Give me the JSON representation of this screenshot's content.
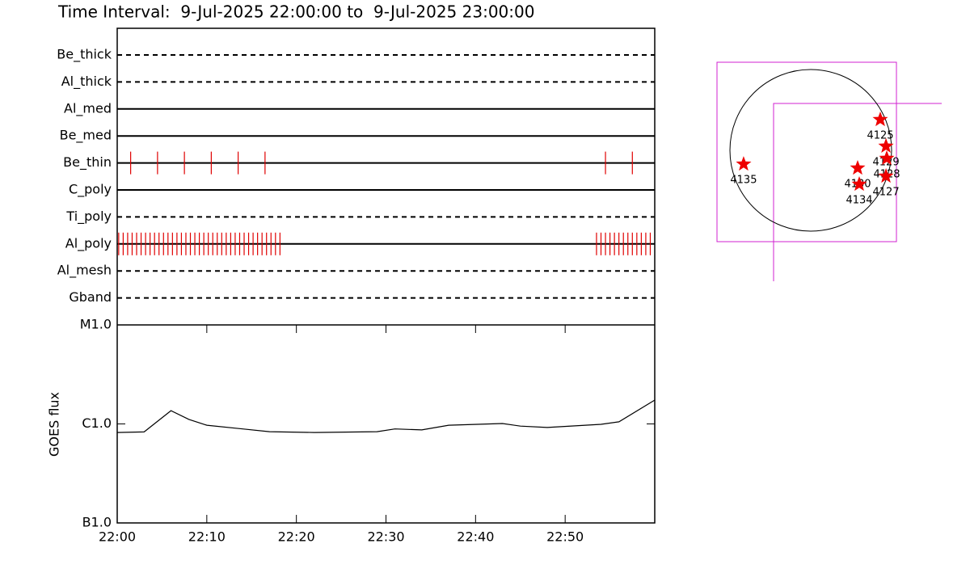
{
  "chart_data": [
    {
      "type": "timeline",
      "title": "Time Interval:  9-Jul-2025 22:00:00 to  9-Jul-2025 23:00:00",
      "xlim": [
        "22:00",
        "23:00"
      ],
      "color": "#e00000",
      "lanes": [
        {
          "name": "Be_thick",
          "style": "dashed",
          "events": []
        },
        {
          "name": "Al_thick",
          "style": "dashed",
          "events": []
        },
        {
          "name": "Al_med",
          "style": "solid",
          "events": []
        },
        {
          "name": "Be_med",
          "style": "solid",
          "events": []
        },
        {
          "name": "Be_thin",
          "style": "solid",
          "events": [
            "22:01:30",
            "22:04:30",
            "22:07:30",
            "22:10:30",
            "22:13:30",
            "22:16:30",
            "22:54:30",
            "22:57:30"
          ]
        },
        {
          "name": "C_poly",
          "style": "solid",
          "events": []
        },
        {
          "name": "Ti_poly",
          "style": "dashed",
          "events": []
        },
        {
          "name": "Al_poly",
          "style": "solid",
          "events": [
            "22:00:10",
            "22:00:40",
            "22:01:10",
            "22:01:40",
            "22:02:10",
            "22:02:40",
            "22:03:10",
            "22:03:40",
            "22:04:10",
            "22:04:40",
            "22:05:10",
            "22:05:40",
            "22:06:10",
            "22:06:40",
            "22:07:10",
            "22:07:40",
            "22:08:10",
            "22:08:40",
            "22:09:10",
            "22:09:40",
            "22:10:10",
            "22:10:40",
            "22:11:10",
            "22:11:40",
            "22:12:10",
            "22:12:40",
            "22:13:10",
            "22:13:40",
            "22:14:10",
            "22:14:40",
            "22:15:10",
            "22:15:40",
            "22:16:10",
            "22:16:40",
            "22:17:10",
            "22:17:40",
            "22:18:10",
            "22:53:30",
            "22:54:00",
            "22:54:30",
            "22:55:00",
            "22:55:30",
            "22:56:00",
            "22:56:30",
            "22:57:00",
            "22:57:30",
            "22:58:00",
            "22:58:30",
            "22:59:00",
            "22:59:30"
          ]
        },
        {
          "name": "Al_mesh",
          "style": "dashed",
          "events": []
        },
        {
          "name": "Gband",
          "style": "dashed",
          "events": []
        }
      ]
    },
    {
      "type": "line",
      "y_label": "GOES flux",
      "log_scale": true,
      "color": "#000000",
      "xlim": [
        "22:00",
        "23:00"
      ],
      "xticks": [
        "22:00",
        "22:10",
        "22:20",
        "22:30",
        "22:40",
        "22:50"
      ],
      "ylim": [
        1e-07,
        1e-05
      ],
      "yticks": [
        {
          "value": 1e-07,
          "label": "B1.0"
        },
        {
          "value": 1e-06,
          "label": "C1.0"
        },
        {
          "value": 1e-05,
          "label": "M1.0"
        }
      ],
      "x": [
        "22:00",
        "22:03",
        "22:06",
        "22:08",
        "22:10",
        "22:14",
        "22:17",
        "22:22",
        "22:29",
        "22:31",
        "22:34",
        "22:37",
        "22:43",
        "22:45",
        "22:48",
        "22:54",
        "22:56",
        "23:00"
      ],
      "values": [
        8.2e-07,
        8.3e-07,
        1.36e-06,
        1.11e-06,
        9.7e-07,
        8.9e-07,
        8.35e-07,
        8.2e-07,
        8.35e-07,
        8.9e-07,
        8.7e-07,
        9.7e-07,
        1.01e-06,
        9.5e-07,
        9.2e-07,
        9.9e-07,
        1.05e-06,
        1.74e-06
      ]
    },
    {
      "type": "scatter",
      "color": "#ee0000",
      "labels": [
        "4135",
        "4125",
        "4129",
        "4128",
        "4130",
        "4134",
        "4127"
      ],
      "x": [
        -789,
        817,
        884,
        893,
        551,
        570,
        884
      ],
      "y": [
        -162,
        361,
        48,
        -95,
        -209,
        -399,
        -304
      ]
    }
  ]
}
